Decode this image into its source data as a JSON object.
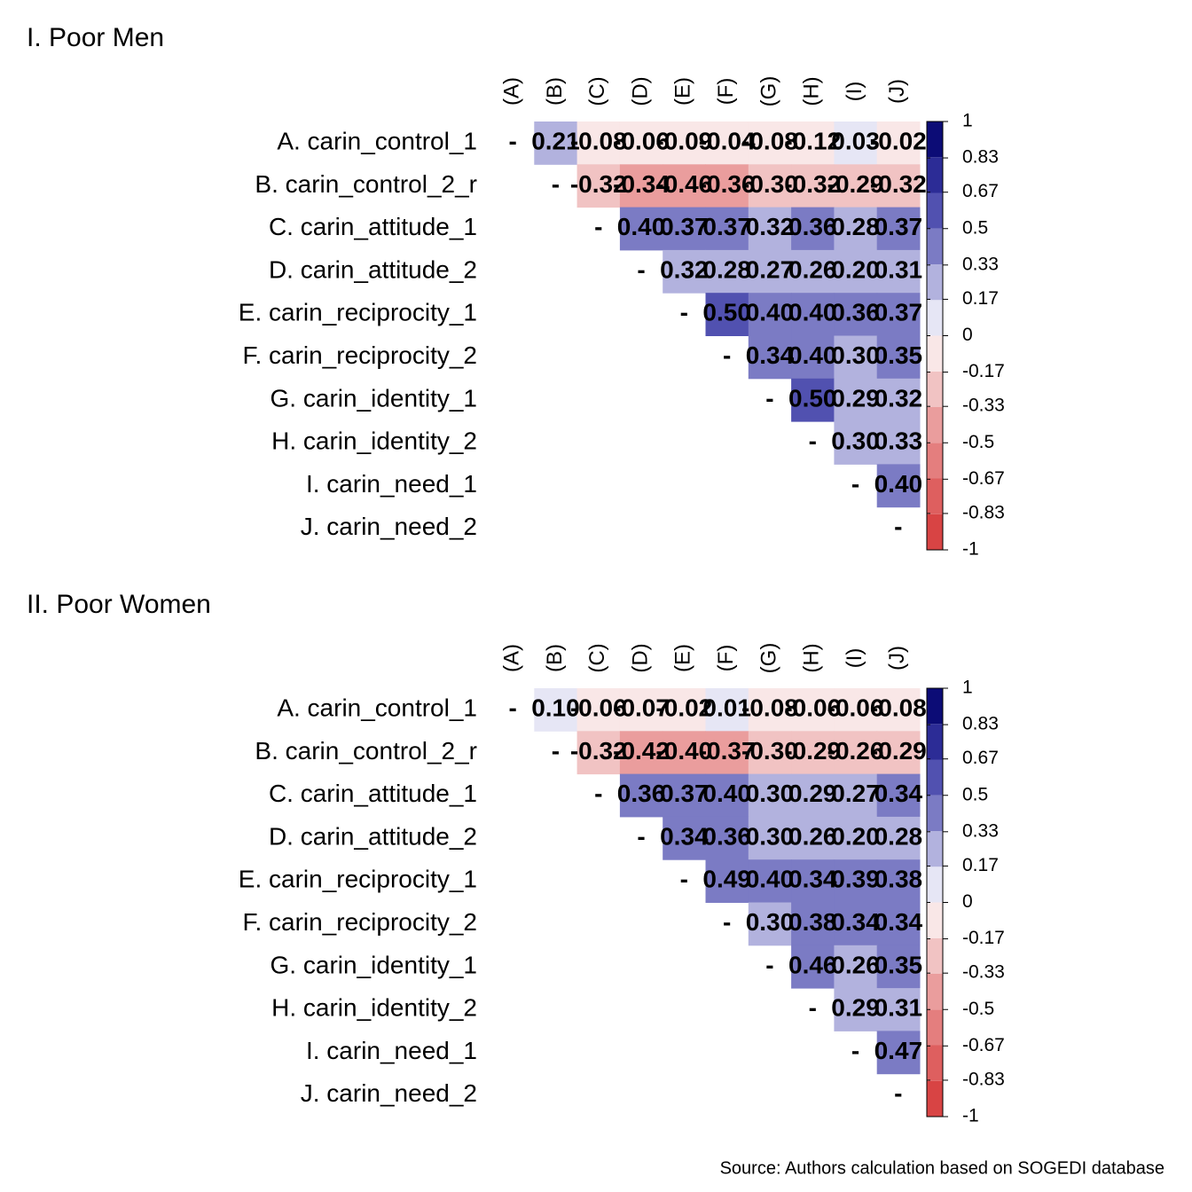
{
  "chart_data": [
    {
      "type": "heatmap",
      "title": "I. Poor Men",
      "row_labels": [
        "A. carin_control_1",
        "B. carin_control_2_r",
        "C. carin_attitude_1",
        "D. carin_attitude_2",
        "E. carin_reciprocity_1",
        "F. carin_reciprocity_2",
        "G. carin_identity_1",
        "H. carin_identity_2",
        "I. carin_need_1",
        "J. carin_need_2"
      ],
      "col_labels": [
        "(A)",
        "(B)",
        "(C)",
        "(D)",
        "(E)",
        "(F)",
        "(G)",
        "(H)",
        "(I)",
        "(J)"
      ],
      "values": [
        [
          null,
          0.21,
          -0.08,
          -0.06,
          -0.09,
          -0.04,
          -0.08,
          -0.12,
          0.03,
          -0.02
        ],
        [
          null,
          null,
          -0.32,
          -0.34,
          -0.46,
          -0.36,
          -0.3,
          -0.32,
          -0.29,
          -0.32
        ],
        [
          null,
          null,
          null,
          0.4,
          0.37,
          0.37,
          0.32,
          0.36,
          0.28,
          0.37
        ],
        [
          null,
          null,
          null,
          null,
          0.32,
          0.28,
          0.27,
          0.26,
          0.2,
          0.31
        ],
        [
          null,
          null,
          null,
          null,
          null,
          0.5,
          0.4,
          0.4,
          0.36,
          0.37
        ],
        [
          null,
          null,
          null,
          null,
          null,
          null,
          0.34,
          0.4,
          0.3,
          0.35
        ],
        [
          null,
          null,
          null,
          null,
          null,
          null,
          null,
          0.5,
          0.29,
          0.32
        ],
        [
          null,
          null,
          null,
          null,
          null,
          null,
          null,
          null,
          0.3,
          0.33
        ],
        [
          null,
          null,
          null,
          null,
          null,
          null,
          null,
          null,
          null,
          0.4
        ],
        [
          null,
          null,
          null,
          null,
          null,
          null,
          null,
          null,
          null,
          null
        ]
      ],
      "value_labels": [
        [
          "-",
          "0.21",
          "-0.08",
          "-0.06",
          "-0.09",
          "-0.04",
          "-0.08",
          "-0.12",
          "0.03",
          "-0.02"
        ],
        [
          null,
          "-",
          "-0.32",
          "-0.34",
          "-0.46",
          "-0.36",
          "-0.30",
          "-0.32",
          "-0.29",
          "-0.32"
        ],
        [
          null,
          null,
          "-",
          "0.40",
          "0.37",
          "0.37",
          "0.32",
          "0.36",
          "0.28",
          "0.37"
        ],
        [
          null,
          null,
          null,
          "-",
          "0.32",
          "0.28",
          "0.27",
          "0.26",
          "0.20",
          "0.31"
        ],
        [
          null,
          null,
          null,
          null,
          "-",
          "0.50",
          "0.40",
          "0.40",
          "0.36",
          "0.37"
        ],
        [
          null,
          null,
          null,
          null,
          null,
          "-",
          "0.34",
          "0.40",
          "0.30",
          "0.35"
        ],
        [
          null,
          null,
          null,
          null,
          null,
          null,
          "-",
          "0.50",
          "0.29",
          "0.32"
        ],
        [
          null,
          null,
          null,
          null,
          null,
          null,
          null,
          "-",
          "0.30",
          "0.33"
        ],
        [
          null,
          null,
          null,
          null,
          null,
          null,
          null,
          null,
          "-",
          "0.40"
        ],
        [
          null,
          null,
          null,
          null,
          null,
          null,
          null,
          null,
          null,
          "-"
        ]
      ],
      "zlim": [
        -1,
        1
      ],
      "zticks": [
        1,
        0.83,
        0.67,
        0.5,
        0.33,
        0.17,
        0,
        -0.17,
        -0.33,
        -0.5,
        -0.67,
        -0.83,
        -1
      ],
      "palette": [
        "#d84444",
        "#de5f5f",
        "#e47e7e",
        "#ea9d9d",
        "#f1c3c3",
        "#f9e7e7",
        "#e6e6f5",
        "#b2b2de",
        "#7b7bc4",
        "#5151b0",
        "#2c2c96",
        "#0c0c76"
      ]
    },
    {
      "type": "heatmap",
      "title": "II. Poor Women",
      "row_labels": [
        "A. carin_control_1",
        "B. carin_control_2_r",
        "C. carin_attitude_1",
        "D. carin_attitude_2",
        "E. carin_reciprocity_1",
        "F. carin_reciprocity_2",
        "G. carin_identity_1",
        "H. carin_identity_2",
        "I. carin_need_1",
        "J. carin_need_2"
      ],
      "col_labels": [
        "(A)",
        "(B)",
        "(C)",
        "(D)",
        "(E)",
        "(F)",
        "(G)",
        "(H)",
        "(I)",
        "(J)"
      ],
      "values": [
        [
          null,
          0.1,
          -0.06,
          -0.07,
          -0.02,
          0.01,
          -0.08,
          -0.06,
          -0.06,
          -0.08
        ],
        [
          null,
          null,
          -0.32,
          -0.42,
          -0.4,
          -0.37,
          -0.3,
          -0.29,
          -0.26,
          -0.29
        ],
        [
          null,
          null,
          null,
          0.36,
          0.37,
          0.4,
          0.3,
          0.29,
          0.27,
          0.34
        ],
        [
          null,
          null,
          null,
          null,
          0.34,
          0.36,
          0.3,
          0.26,
          0.2,
          0.28
        ],
        [
          null,
          null,
          null,
          null,
          null,
          0.49,
          0.4,
          0.34,
          0.39,
          0.38
        ],
        [
          null,
          null,
          null,
          null,
          null,
          null,
          0.3,
          0.38,
          0.34,
          0.34
        ],
        [
          null,
          null,
          null,
          null,
          null,
          null,
          null,
          0.46,
          0.26,
          0.35
        ],
        [
          null,
          null,
          null,
          null,
          null,
          null,
          null,
          null,
          0.29,
          0.31
        ],
        [
          null,
          null,
          null,
          null,
          null,
          null,
          null,
          null,
          null,
          0.47
        ],
        [
          null,
          null,
          null,
          null,
          null,
          null,
          null,
          null,
          null,
          null
        ]
      ],
      "value_labels": [
        [
          "-",
          "0.10",
          "-0.06",
          "-0.07",
          "-0.02",
          "0.01",
          "-0.08",
          "-0.06",
          "-0.06",
          "-0.08"
        ],
        [
          null,
          "-",
          "-0.32",
          "-0.42",
          "-0.40",
          "-0.37",
          "-0.30",
          "-0.29",
          "-0.26",
          "-0.29"
        ],
        [
          null,
          null,
          "-",
          "0.36",
          "0.37",
          "0.40",
          "0.30",
          "0.29",
          "0.27",
          "0.34"
        ],
        [
          null,
          null,
          null,
          "-",
          "0.34",
          "0.36",
          "0.30",
          "0.26",
          "0.20",
          "0.28"
        ],
        [
          null,
          null,
          null,
          null,
          "-",
          "0.49",
          "0.40",
          "0.34",
          "0.39",
          "0.38"
        ],
        [
          null,
          null,
          null,
          null,
          null,
          "-",
          "0.30",
          "0.38",
          "0.34",
          "0.34"
        ],
        [
          null,
          null,
          null,
          null,
          null,
          null,
          "-",
          "0.46",
          "0.26",
          "0.35"
        ],
        [
          null,
          null,
          null,
          null,
          null,
          null,
          null,
          "-",
          "0.29",
          "0.31"
        ],
        [
          null,
          null,
          null,
          null,
          null,
          null,
          null,
          null,
          "-",
          "0.47"
        ],
        [
          null,
          null,
          null,
          null,
          null,
          null,
          null,
          null,
          null,
          "-"
        ]
      ],
      "zlim": [
        -1,
        1
      ],
      "zticks": [
        1,
        0.83,
        0.67,
        0.5,
        0.33,
        0.17,
        0,
        -0.17,
        -0.33,
        -0.5,
        -0.67,
        -0.83,
        -1
      ],
      "palette": [
        "#d84444",
        "#de5f5f",
        "#e47e7e",
        "#ea9d9d",
        "#f1c3c3",
        "#f9e7e7",
        "#e6e6f5",
        "#b2b2de",
        "#7b7bc4",
        "#5151b0",
        "#2c2c96",
        "#0c0c76"
      ]
    }
  ],
  "source": "Source: Authors calculation based on SOGEDI database"
}
